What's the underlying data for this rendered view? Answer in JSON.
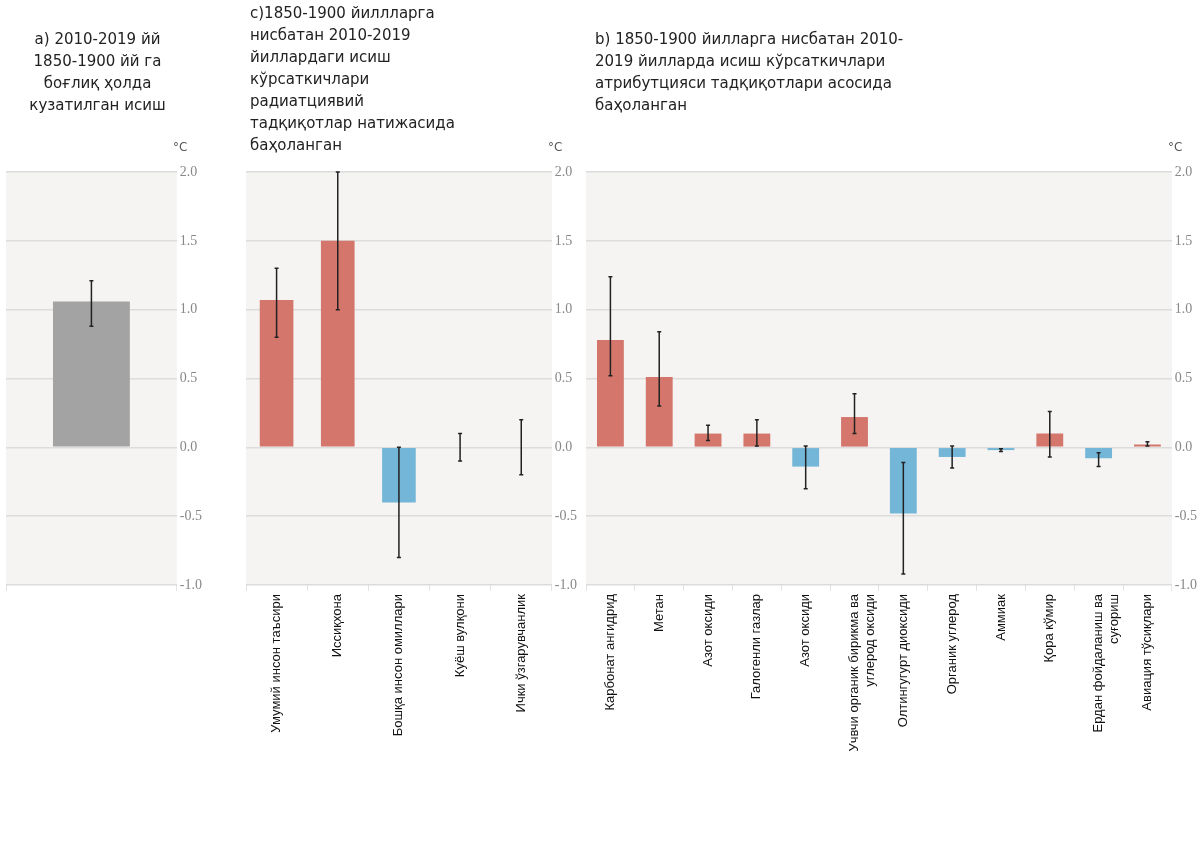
{
  "chart_data": [
    {
      "type": "bar",
      "title": "a) 2010-2019 йй 1850-1900 йй га боғлиқ ҳолда кузатилган исиш",
      "ylabel": "°C",
      "categories": [
        null
      ],
      "values": [
        1.06
      ],
      "errors": [
        [
          0.88,
          1.21
        ]
      ],
      "colors": [
        "#a3a3a3"
      ],
      "ylim": [
        -1,
        2
      ],
      "yticks": [
        {
          "value": -1,
          "label": "-1.0"
        },
        {
          "value": -0.5,
          "label": "-0.5"
        },
        {
          "value": 0,
          "label": "0.0"
        },
        {
          "value": 0.5,
          "label": "0.5"
        },
        {
          "value": 1,
          "label": "1.0"
        },
        {
          "value": 1.5,
          "label": "1.5"
        },
        {
          "value": 2,
          "label": "2.0"
        }
      ],
      "grid": "y",
      "legend": false
    },
    {
      "type": "bar",
      "title": "c)1850-1900 йиллларга нисбатан 2010-2019 йиллардаги исиш кўрсаткичлари радиатциявий тадқиқотлар натижасида баҳоланган",
      "ylabel": "°C",
      "categories": [
        "Умумий инсон таъсири",
        "Иссиқхона",
        "Бошқа инсон омиллари",
        "Куёш вулқони",
        "Ички ўзгарувчанлик"
      ],
      "values": [
        1.07,
        1.5,
        -0.4,
        0,
        0
      ],
      "errors": [
        [
          0.8,
          1.3
        ],
        [
          1.0,
          2.0
        ],
        [
          -0.8,
          0.0
        ],
        [
          -0.1,
          0.1
        ],
        [
          -0.2,
          0.2
        ]
      ],
      "colors": [
        "#d4766b",
        "#d4766b",
        "#74b6d7",
        "#d4766b",
        "#d4766b"
      ],
      "ylim": [
        -1,
        2
      ],
      "yticks": [
        {
          "value": -1,
          "label": "-1.0"
        },
        {
          "value": -0.5,
          "label": "-0.5"
        },
        {
          "value": 0,
          "label": "0.0"
        },
        {
          "value": 0.5,
          "label": "0.5"
        },
        {
          "value": 1,
          "label": "1.0"
        },
        {
          "value": 1.5,
          "label": "1.5"
        },
        {
          "value": 2,
          "label": "2.0"
        }
      ],
      "grid": "y",
      "legend": false
    },
    {
      "type": "bar",
      "title": "b) 1850-1900 йилларга нисбатан 2010-2019 йилларда исиш кўрсаткичлари атрибутцияси тадқиқотлари асосида баҳоланган",
      "ylabel": "°C",
      "categories": [
        "Карбонат ангидрид",
        "Метан",
        "Азот оксиди",
        "Галогенли газлар",
        "Азот оксиди",
        "Учвчи органик бирикма ва углерод оксиди",
        "Олтингугурт диоксиди",
        "Органик углерод",
        "Аммиак",
        "Қора кўмир",
        "Ердан фойдаланиш ва суғориш",
        "Авиация тўсиқлари"
      ],
      "values": [
        0.78,
        0.51,
        0.1,
        0.1,
        -0.14,
        0.22,
        -0.48,
        -0.07,
        -0.02,
        0.1,
        -0.08,
        0.02
      ],
      "errors": [
        [
          0.52,
          1.24
        ],
        [
          0.3,
          0.84
        ],
        [
          0.05,
          0.16
        ],
        [
          0.01,
          0.2
        ],
        [
          -0.3,
          0.01
        ],
        [
          0.1,
          0.39
        ],
        [
          -0.92,
          -0.11
        ],
        [
          -0.15,
          0.01
        ],
        [
          -0.03,
          -0.01
        ],
        [
          -0.07,
          0.26
        ],
        [
          -0.14,
          -0.04
        ],
        [
          0.01,
          0.04
        ]
      ],
      "colors": [
        "#d4766b",
        "#d4766b",
        "#d4766b",
        "#d4766b",
        "#74b6d7",
        "#d4766b",
        "#74b6d7",
        "#74b6d7",
        "#74b6d7",
        "#d4766b",
        "#74b6d7",
        "#d4766b"
      ],
      "ylim": [
        -1,
        2
      ],
      "yticks": [
        {
          "value": -1,
          "label": "-1.0"
        },
        {
          "value": -0.5,
          "label": "-0.5"
        },
        {
          "value": 0,
          "label": "0.0"
        },
        {
          "value": 0.5,
          "label": "0.5"
        },
        {
          "value": 1,
          "label": "1.0"
        },
        {
          "value": 1.5,
          "label": "1.5"
        },
        {
          "value": 2,
          "label": "2.0"
        }
      ],
      "grid": "y",
      "legend": false
    }
  ]
}
